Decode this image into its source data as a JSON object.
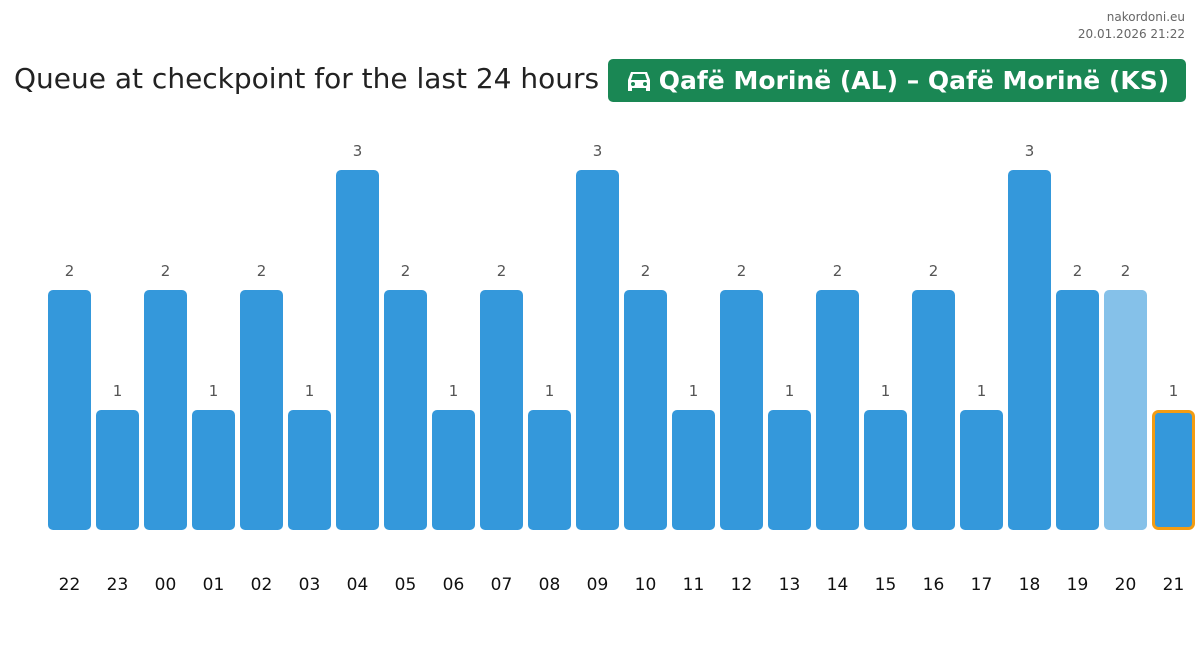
{
  "site": {
    "name": "nakordoni.eu",
    "timestamp": "20.01.2026 21:22"
  },
  "header": {
    "title": "Queue at checkpoint for the last 24 hours",
    "checkpoint": "Qafë Morinë (AL) – Qafë Morinë (KS)",
    "checkpoint_icon": "car-icon",
    "badge_color": "#1a8754"
  },
  "chart_data": {
    "type": "bar",
    "title": "Queue at checkpoint for the last 24 hours",
    "categories": [
      "22",
      "23",
      "00",
      "01",
      "02",
      "03",
      "04",
      "05",
      "06",
      "07",
      "08",
      "09",
      "10",
      "11",
      "12",
      "13",
      "14",
      "15",
      "16",
      "17",
      "18",
      "19",
      "20",
      "21"
    ],
    "values": [
      2,
      1,
      2,
      1,
      2,
      1,
      3,
      2,
      1,
      2,
      1,
      3,
      2,
      1,
      2,
      1,
      2,
      1,
      2,
      1,
      3,
      2,
      2,
      1
    ],
    "xlabel": "",
    "ylabel": "",
    "ylim": [
      0,
      3
    ],
    "grid": false,
    "colors": {
      "bar": "#3498db",
      "bar_faded": "#85c1e9",
      "highlight_border": "#f39c12"
    },
    "faded_index": 22,
    "highlight_index": 23
  }
}
